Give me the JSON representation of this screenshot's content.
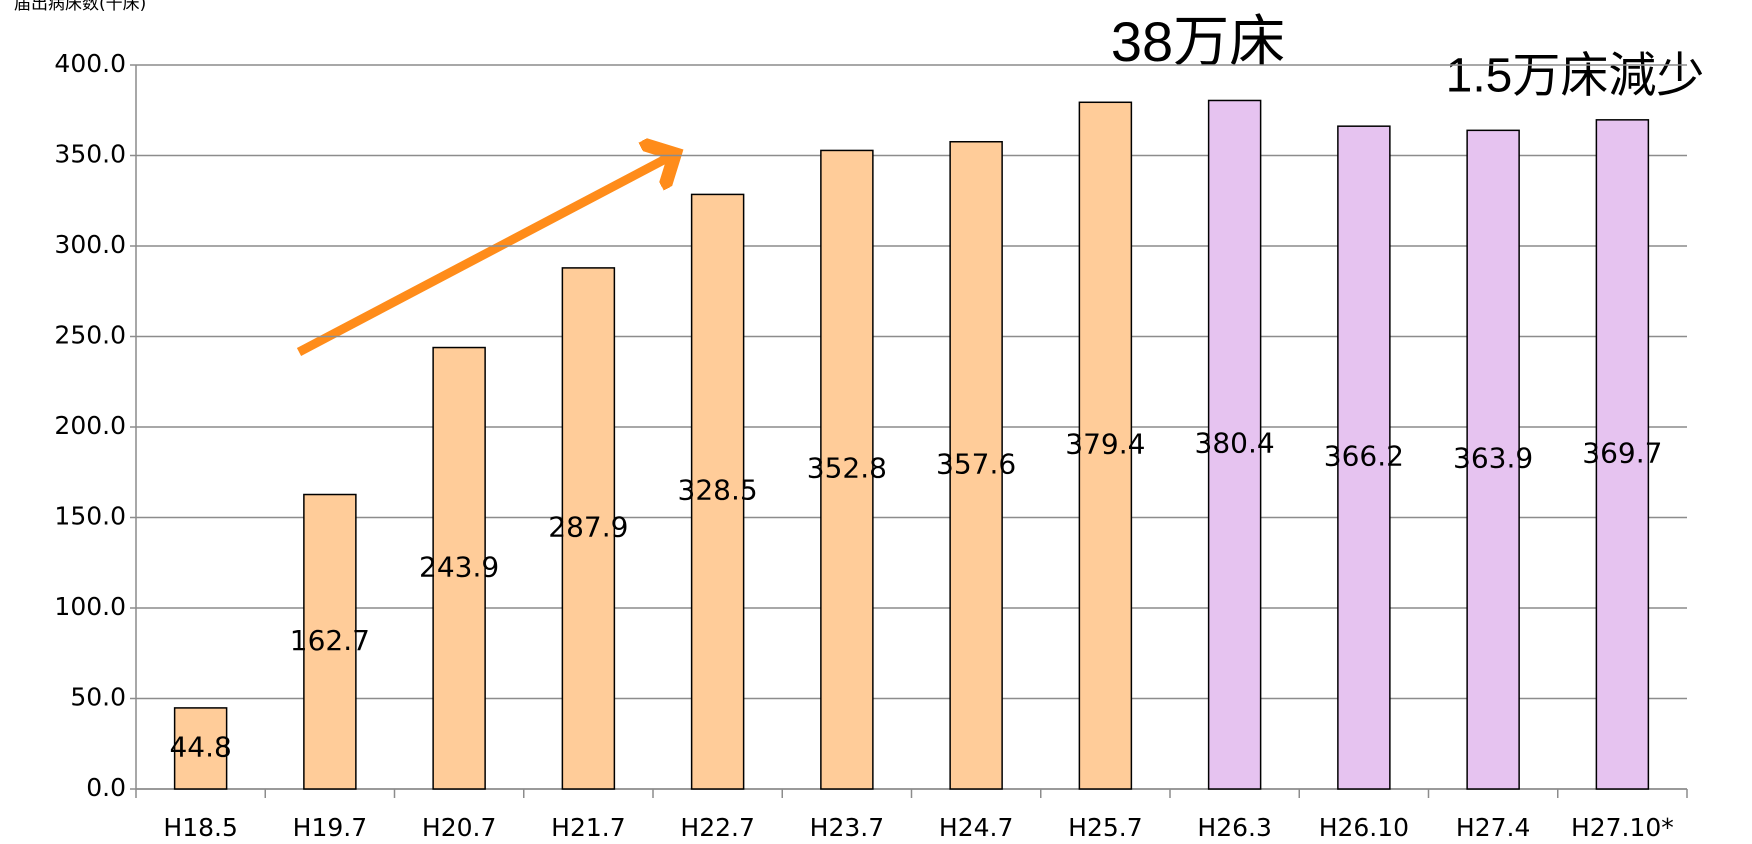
{
  "chart_data": {
    "type": "bar",
    "y_label": "届出病床数(千床)",
    "categories": [
      "H18.5",
      "H19.7",
      "H20.7",
      "H21.7",
      "H22.7",
      "H23.7",
      "H24.7",
      "H25.7",
      "H26.3",
      "H26.10",
      "H27.4",
      "H27.10*"
    ],
    "values": [
      44.8,
      162.7,
      243.9,
      287.9,
      328.5,
      352.8,
      357.6,
      379.4,
      380.4,
      366.2,
      363.9,
      369.7
    ],
    "colors": [
      "#ffcc99",
      "#ffcc99",
      "#ffcc99",
      "#ffcc99",
      "#ffcc99",
      "#ffcc99",
      "#ffcc99",
      "#ffcc99",
      "#e6c3f0",
      "#e6c3f0",
      "#e6c3f0",
      "#e6c3f0"
    ],
    "ylim": [
      0,
      400
    ],
    "yticks": [
      {
        "value": 0,
        "label": "0.0"
      },
      {
        "value": 50,
        "label": "50.0"
      },
      {
        "value": 100,
        "label": "100.0"
      },
      {
        "value": 150,
        "label": "150.0"
      },
      {
        "value": 200,
        "label": "200.0"
      },
      {
        "value": 250,
        "label": "250.0"
      },
      {
        "value": 300,
        "label": "300.0"
      },
      {
        "value": 350,
        "label": "350.0"
      },
      {
        "value": 400,
        "label": "400.0"
      }
    ],
    "grid": true,
    "annotations": [
      "38万床",
      "1.5万床減少"
    ]
  }
}
